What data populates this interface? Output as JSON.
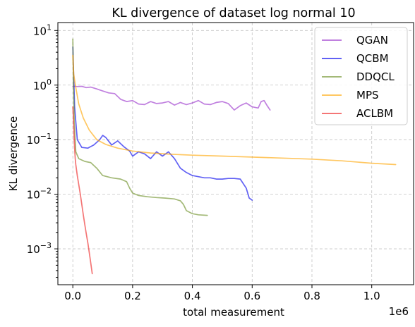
{
  "chart_data": {
    "type": "line",
    "title": "KL divergence of dataset log normal 10",
    "xlabel": "total measurement",
    "ylabel": "KL divergence",
    "x_offset_text": "1e6",
    "xlim": [
      -50000,
      1140000
    ],
    "ylim": [
      0.00022,
      14
    ],
    "yscale": "log",
    "grid": true,
    "legend_position": "top-right",
    "xticks": [
      {
        "value": 0,
        "label": "0.0"
      },
      {
        "value": 200000,
        "label": "0.2"
      },
      {
        "value": 400000,
        "label": "0.4"
      },
      {
        "value": 600000,
        "label": "0.6"
      },
      {
        "value": 800000,
        "label": "0.8"
      },
      {
        "value": 1000000,
        "label": "1.0"
      }
    ],
    "yticks": [
      {
        "value": 10,
        "base": "10",
        "exp": "1"
      },
      {
        "value": 1,
        "base": "10",
        "exp": "0"
      },
      {
        "value": 0.1,
        "base": "10",
        "exp": "−1"
      },
      {
        "value": 0.01,
        "base": "10",
        "exp": "−2"
      },
      {
        "value": 0.001,
        "base": "10",
        "exp": "−3"
      }
    ],
    "series": [
      {
        "name": "QGAN",
        "color": "#9932CC",
        "x": [
          0,
          5000,
          15000,
          30000,
          45000,
          60000,
          80000,
          100000,
          120000,
          140000,
          160000,
          180000,
          200000,
          220000,
          240000,
          260000,
          280000,
          300000,
          320000,
          340000,
          360000,
          380000,
          400000,
          420000,
          440000,
          460000,
          480000,
          500000,
          520000,
          540000,
          560000,
          580000,
          600000,
          620000,
          630000,
          640000,
          650000,
          660000
        ],
        "y": [
          0.95,
          0.95,
          0.94,
          0.95,
          0.9,
          0.92,
          0.85,
          0.78,
          0.72,
          0.7,
          0.55,
          0.5,
          0.52,
          0.45,
          0.44,
          0.5,
          0.46,
          0.47,
          0.5,
          0.43,
          0.48,
          0.44,
          0.47,
          0.52,
          0.45,
          0.44,
          0.48,
          0.5,
          0.46,
          0.35,
          0.42,
          0.47,
          0.4,
          0.38,
          0.5,
          0.52,
          0.42,
          0.35
        ]
      },
      {
        "name": "QCBM",
        "color": "#0000EE",
        "x": [
          0,
          3000,
          6000,
          15000,
          30000,
          50000,
          70000,
          90000,
          100000,
          110000,
          130000,
          150000,
          170000,
          190000,
          200000,
          220000,
          240000,
          260000,
          280000,
          300000,
          320000,
          340000,
          360000,
          380000,
          400000,
          420000,
          440000,
          460000,
          480000,
          500000,
          520000,
          540000,
          560000,
          580000,
          590000,
          600000
        ],
        "y": [
          5.0,
          1.5,
          0.4,
          0.1,
          0.072,
          0.07,
          0.08,
          0.1,
          0.12,
          0.11,
          0.08,
          0.095,
          0.075,
          0.062,
          0.05,
          0.06,
          0.055,
          0.045,
          0.06,
          0.05,
          0.06,
          0.045,
          0.03,
          0.025,
          0.022,
          0.021,
          0.02,
          0.02,
          0.019,
          0.019,
          0.0195,
          0.0195,
          0.019,
          0.013,
          0.0085,
          0.0078
        ]
      },
      {
        "name": "DDQCL",
        "color": "#6B8E23",
        "x": [
          0,
          2000,
          5000,
          10000,
          20000,
          40000,
          60000,
          80000,
          100000,
          130000,
          160000,
          180000,
          190000,
          200000,
          220000,
          250000,
          280000,
          310000,
          340000,
          360000,
          370000,
          380000,
          400000,
          420000,
          450000
        ],
        "y": [
          7.0,
          1.2,
          0.2,
          0.06,
          0.045,
          0.04,
          0.038,
          0.03,
          0.022,
          0.02,
          0.019,
          0.017,
          0.013,
          0.0105,
          0.0095,
          0.009,
          0.0087,
          0.0085,
          0.0082,
          0.0076,
          0.0065,
          0.005,
          0.0044,
          0.0042,
          0.0041
        ]
      },
      {
        "name": "MPS",
        "color": "#FFA500",
        "x": [
          0,
          3000,
          10000,
          20000,
          35000,
          55000,
          80000,
          110000,
          150000,
          200000,
          260000,
          330000,
          400000,
          500000,
          600000,
          700000,
          800000,
          900000,
          1000000,
          1080000
        ],
        "y": [
          3.5,
          1.6,
          0.9,
          0.45,
          0.25,
          0.15,
          0.1,
          0.082,
          0.07,
          0.062,
          0.057,
          0.054,
          0.052,
          0.05,
          0.048,
          0.046,
          0.044,
          0.041,
          0.037,
          0.035
        ]
      },
      {
        "name": "ACLBM",
        "color": "#EE2222",
        "x": [
          0,
          2000,
          4000,
          6000,
          8000,
          10000,
          15000,
          20000,
          25000,
          30000,
          35000,
          40000,
          45000,
          50000,
          55000,
          60000,
          65000
        ],
        "y": [
          0.4,
          0.25,
          0.12,
          0.07,
          0.045,
          0.035,
          0.022,
          0.015,
          0.01,
          0.0065,
          0.0042,
          0.0028,
          0.0019,
          0.0013,
          0.00085,
          0.00055,
          0.00035
        ]
      }
    ]
  }
}
